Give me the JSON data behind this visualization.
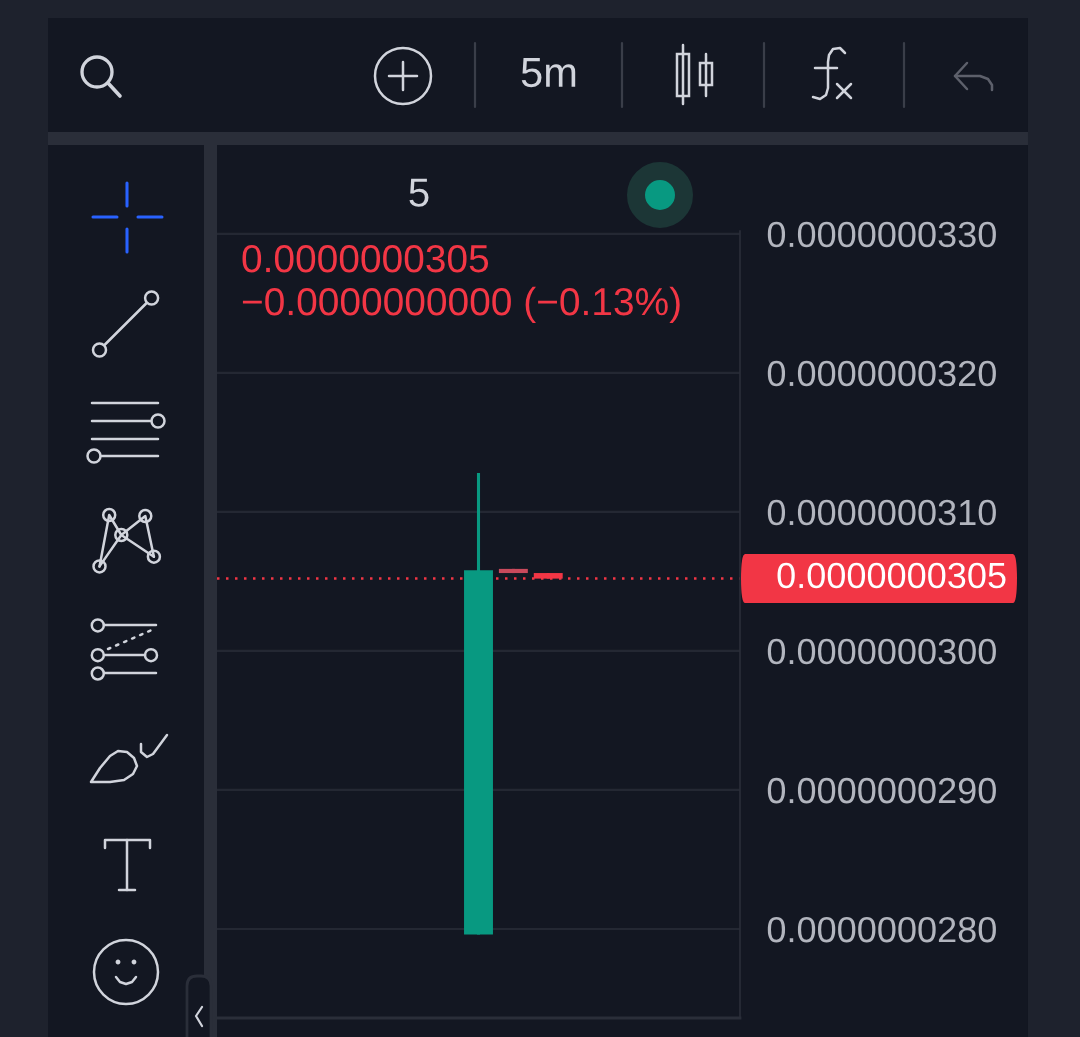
{
  "chart_data": {
    "type": "candlestick",
    "categories": [
      null,
      null,
      null,
      null,
      null,
      null,
      null,
      null,
      null,
      null,
      null,
      null,
      null,
      null,
      null
    ],
    "ohlc": [
      null,
      null,
      null,
      null,
      null,
      null,
      null,
      [
        2.796e-08,
        3.128e-08,
        2.796e-08,
        3.058e-08
      ],
      [
        3.059e-08,
        3.059e-08,
        3.056e-08,
        3.056e-08
      ],
      [
        3.056e-08,
        3.056e-08,
        3.052e-08,
        3.052e-08
      ],
      null,
      null,
      null,
      null,
      null
    ],
    "colors": [
      null,
      null,
      null,
      null,
      null,
      null,
      null,
      "#089981",
      "#c94a5c",
      "#f23645",
      null,
      null,
      null,
      null,
      null
    ],
    "ylim": [
      2.736e-08,
      3.302e-08
    ],
    "yticks": [
      {
        "value": 2.8e-08,
        "label": "0.0000000280"
      },
      {
        "value": 2.9e-08,
        "label": "0.0000000290"
      },
      {
        "value": 3e-08,
        "label": "0.0000000300"
      },
      {
        "value": 3.1e-08,
        "label": "0.0000000310"
      },
      {
        "value": 3.2e-08,
        "label": "0.0000000320"
      },
      {
        "value": 3.3e-08,
        "label": "0.0000000330"
      }
    ],
    "grid": "y",
    "tick_labels": "y",
    "ref_lines": [
      {
        "axis": "y",
        "value": 3.052e-08,
        "label": "0.0000000305",
        "color": "#f23645",
        "line_style": "dotted"
      }
    ],
    "annotations": [
      "5m",
      "5",
      "0.0000000305",
      "−0.0000000000 (−0.13%)"
    ]
  }
}
